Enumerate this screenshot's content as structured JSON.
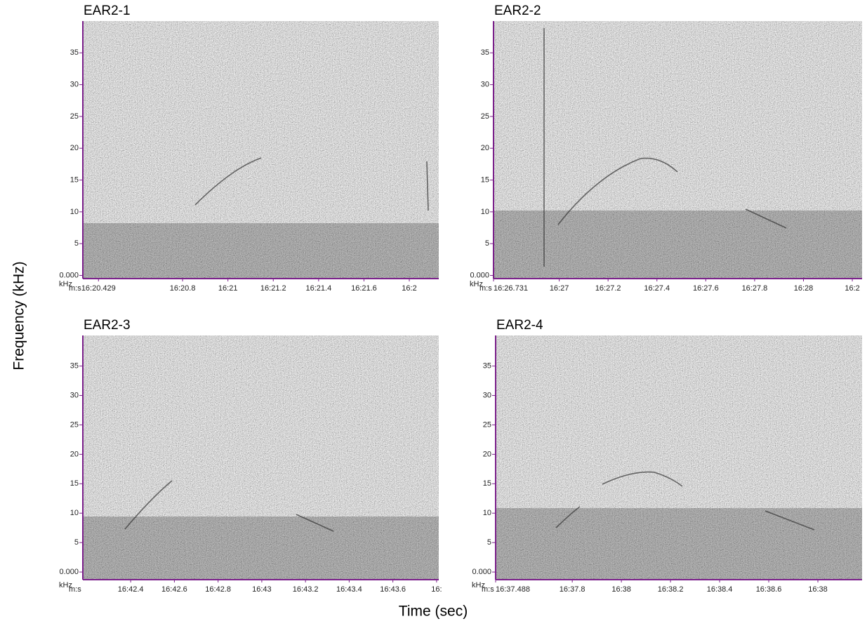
{
  "chart_data": [
    {
      "type": "spectrogram",
      "title": "EAR2-1",
      "y_unit": "kHz",
      "x_unit": "m:s",
      "ylim": [
        -0.5,
        40
      ],
      "yticks": [
        {
          "value": 0,
          "label": "0.000"
        },
        5,
        10,
        15,
        20,
        25,
        30,
        35
      ],
      "xlim": [
        980.36,
        981.93
      ],
      "xticks": [
        {
          "value": 980.429,
          "label": "16:20.429"
        },
        {
          "value": 980.8,
          "label": "16:20.8"
        },
        {
          "value": 981.0,
          "label": "16:21"
        },
        {
          "value": 981.2,
          "label": "16:21.2"
        },
        {
          "value": 981.4,
          "label": "16:21.4"
        },
        {
          "value": 981.6,
          "label": "16:21.6"
        },
        {
          "value": 981.8,
          "label": "16:2"
        }
      ]
    },
    {
      "type": "spectrogram",
      "title": "EAR2-2",
      "y_unit": "kHz",
      "x_unit": "m:s",
      "ylim": [
        -0.5,
        40
      ],
      "yticks": [
        {
          "value": 0,
          "label": "0.000"
        },
        5,
        10,
        15,
        20,
        25,
        30,
        35
      ],
      "xlim": [
        986.731,
        988.24
      ],
      "xticks": [
        {
          "value": 986.731,
          "label": "16:26.731"
        },
        {
          "value": 987.0,
          "label": "16:27"
        },
        {
          "value": 987.2,
          "label": "16:27.2"
        },
        {
          "value": 987.4,
          "label": "16:27.4"
        },
        {
          "value": 987.6,
          "label": "16:27.6"
        },
        {
          "value": 987.8,
          "label": "16:27.8"
        },
        {
          "value": 988.0,
          "label": "16:28"
        },
        {
          "value": 988.2,
          "label": "16:2"
        }
      ]
    },
    {
      "type": "spectrogram",
      "title": "EAR2-3",
      "y_unit": "kHz",
      "x_unit": "m:s",
      "ylim": [
        -1.3,
        40.2
      ],
      "yticks": [
        {
          "value": 0,
          "label": "0.000"
        },
        5,
        10,
        15,
        20,
        25,
        30,
        35
      ],
      "xlim": [
        1002.181,
        1003.81
      ],
      "xticks": [
        {
          "value": 1002.4,
          "label": "16:42.4"
        },
        {
          "value": 1002.6,
          "label": "16:42.6"
        },
        {
          "value": 1002.8,
          "label": "16:42.8"
        },
        {
          "value": 1003.0,
          "label": "16:43"
        },
        {
          "value": 1003.2,
          "label": "16:43.2"
        },
        {
          "value": 1003.4,
          "label": "16:43.4"
        },
        {
          "value": 1003.6,
          "label": "16:43.6"
        },
        {
          "value": 1003.8,
          "label": "16:"
        }
      ]
    },
    {
      "type": "spectrogram",
      "title": "EAR2-4",
      "y_unit": "kHz",
      "x_unit": "m:s",
      "ylim": [
        -1.3,
        40.2
      ],
      "yticks": [
        {
          "value": 0,
          "label": "0.000"
        },
        5,
        10,
        15,
        20,
        25,
        30,
        35
      ],
      "xlim": [
        997.488,
        998.98
      ],
      "xticks": [
        {
          "value": 997.488,
          "label": "16:37.488"
        },
        {
          "value": 997.8,
          "label": "16:37.8"
        },
        {
          "value": 998.0,
          "label": "16:38"
        },
        {
          "value": 998.2,
          "label": "16:38.2"
        },
        {
          "value": 998.4,
          "label": "16:38.4"
        },
        {
          "value": 998.6,
          "label": "16:38.6"
        },
        {
          "value": 998.8,
          "label": "16:38"
        }
      ]
    }
  ],
  "ylabel": "Frequency (kHz)",
  "xlabel": "Time (sec)"
}
